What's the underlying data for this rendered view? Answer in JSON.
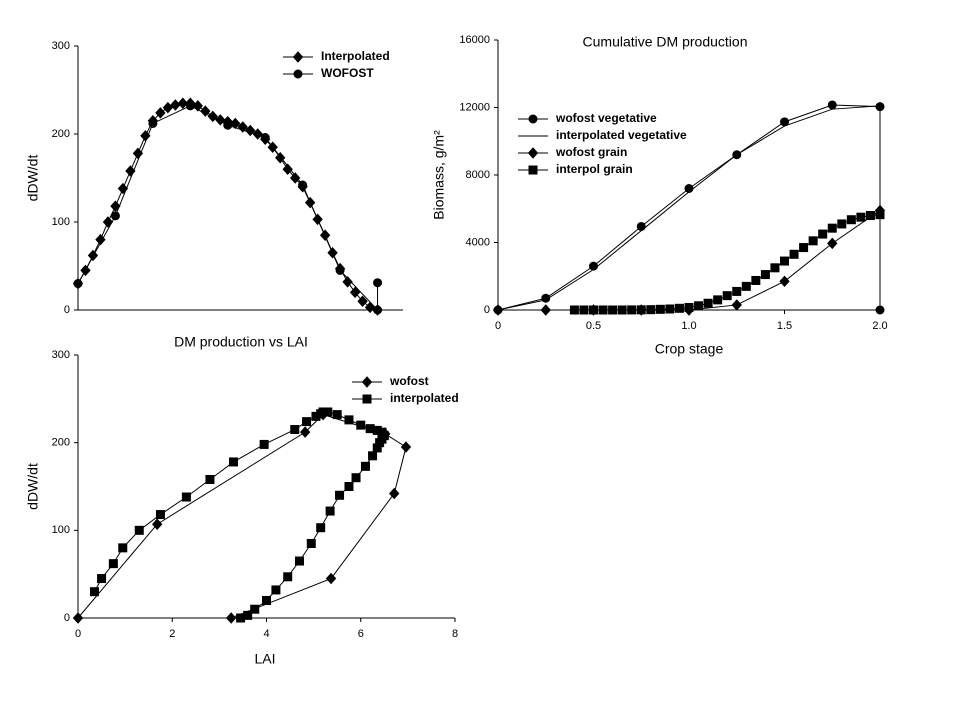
{
  "chart_data": [
    {
      "type": "line",
      "ylabel": "dDW/dt",
      "xlim": [
        0,
        2.17
      ],
      "ylim": [
        0,
        300
      ],
      "yticks": [
        0,
        100,
        200,
        300
      ],
      "legend": "top-right",
      "series": [
        {
          "name": "Interpolated",
          "color": "#000000",
          "marker": "diamond",
          "x": [
            0,
            0.05,
            0.1,
            0.15,
            0.2,
            0.25,
            0.3,
            0.35,
            0.4,
            0.45,
            0.5,
            0.55,
            0.6,
            0.65,
            0.7,
            0.75,
            0.8,
            0.85,
            0.9,
            0.95,
            1.0,
            1.05,
            1.1,
            1.15,
            1.2,
            1.25,
            1.3,
            1.35,
            1.4,
            1.45,
            1.5,
            1.55,
            1.6,
            1.65,
            1.7,
            1.75,
            1.8,
            1.85,
            1.9,
            1.95,
            2.0
          ],
          "values": [
            30,
            45,
            62,
            80,
            100,
            118,
            138,
            158,
            178,
            198,
            215,
            224,
            230,
            233,
            235,
            235,
            232,
            226,
            220,
            216,
            214,
            212,
            208,
            204,
            200,
            194,
            185,
            173,
            160,
            150,
            140,
            122,
            103,
            85,
            65,
            47,
            32,
            20,
            10,
            3,
            0
          ]
        },
        {
          "name": "WOFOST",
          "color": "#000000",
          "marker": "circle",
          "x": [
            0,
            0.25,
            0.5,
            0.75,
            1.0,
            1.25,
            1.5,
            1.75,
            2.0,
            2.0
          ],
          "values": [
            30,
            107,
            212,
            232,
            210,
            196,
            142,
            45,
            0,
            31
          ]
        }
      ]
    },
    {
      "type": "line",
      "title": "Cumulative DM production",
      "xlabel": "Crop stage",
      "ylabel": "Biomass, g/m²",
      "xlim": [
        0,
        2
      ],
      "ylim": [
        0,
        16000
      ],
      "xticks": [
        0,
        0.5,
        {
          "value": 1,
          "label": "1.0"
        },
        1.5,
        {
          "value": 2,
          "label": "2.0"
        }
      ],
      "yticks": [
        0,
        4000,
        8000,
        12000,
        16000
      ],
      "legend": "top-left",
      "series": [
        {
          "name": "wofost vegetative",
          "color": "#000000",
          "marker": "circle",
          "x": [
            0,
            0.25,
            0.5,
            0.75,
            1.0,
            1.25,
            1.5,
            1.75,
            2.0,
            2.0
          ],
          "values": [
            0,
            700,
            2600,
            4950,
            7200,
            9200,
            11150,
            12150,
            12050,
            0
          ]
        },
        {
          "name": "interpolated vegetative",
          "color": "#000000",
          "marker": "none",
          "x": [
            0,
            0.25,
            0.5,
            0.75,
            1.0,
            1.25,
            1.5,
            1.75,
            2.0
          ],
          "values": [
            0,
            600,
            2400,
            4700,
            7000,
            9200,
            10900,
            11900,
            12100
          ]
        },
        {
          "name": "wofost grain",
          "color": "#000000",
          "marker": "diamond",
          "x": [
            0,
            0.25,
            0.5,
            0.75,
            1.0,
            1.25,
            1.5,
            1.75,
            2.0
          ],
          "values": [
            0,
            0,
            0,
            0,
            0,
            300,
            1700,
            3950,
            5900
          ]
        },
        {
          "name": "interpol grain",
          "color": "#000000",
          "marker": "square",
          "x": [
            0.4,
            0.45,
            0.5,
            0.55,
            0.6,
            0.65,
            0.7,
            0.75,
            0.8,
            0.85,
            0.9,
            0.95,
            1.0,
            1.05,
            1.1,
            1.15,
            1.2,
            1.25,
            1.3,
            1.35,
            1.4,
            1.45,
            1.5,
            1.55,
            1.6,
            1.65,
            1.7,
            1.75,
            1.8,
            1.85,
            1.9,
            1.95,
            2.0
          ],
          "values": [
            0,
            0,
            0,
            0,
            0,
            0,
            5,
            10,
            20,
            40,
            60,
            100,
            150,
            250,
            400,
            600,
            850,
            1100,
            1400,
            1750,
            2100,
            2500,
            2900,
            3300,
            3700,
            4100,
            4500,
            4850,
            5100,
            5350,
            5500,
            5600,
            5650
          ]
        }
      ]
    },
    {
      "type": "line",
      "title": "DM production vs LAI",
      "xlabel": "LAI",
      "ylabel": "dDW/dt",
      "xlim": [
        0,
        8
      ],
      "ylim": [
        0,
        300
      ],
      "xticks": [
        0,
        2,
        4,
        6,
        8
      ],
      "yticks": [
        0,
        100,
        200,
        300
      ],
      "legend": "top-right",
      "series": [
        {
          "name": "wofost",
          "color": "#000000",
          "marker": "diamond",
          "x": [
            0,
            1.68,
            4.82,
            5.2,
            6.52,
            6.96,
            6.71,
            5.37,
            3.25
          ],
          "values": [
            0,
            107,
            212,
            232,
            210,
            195,
            142,
            45,
            0
          ]
        },
        {
          "name": "interpolated",
          "color": "#000000",
          "marker": "square",
          "x": [
            0.35,
            0.5,
            0.75,
            0.95,
            1.3,
            1.75,
            2.3,
            2.8,
            3.3,
            3.95,
            4.6,
            4.85,
            5.05,
            5.15,
            5.2,
            5.3,
            5.5,
            5.75,
            6.0,
            6.2,
            6.35,
            6.45,
            6.5,
            6.45,
            6.4,
            6.35,
            6.25,
            6.1,
            5.9,
            5.75,
            5.55,
            5.35,
            5.15,
            4.95,
            4.7,
            4.45,
            4.2,
            4.0,
            3.75,
            3.6,
            3.45
          ],
          "values": [
            30,
            45,
            62,
            80,
            100,
            118,
            138,
            158,
            178,
            198,
            215,
            224,
            230,
            233,
            235,
            235,
            232,
            226,
            220,
            216,
            214,
            212,
            208,
            204,
            200,
            194,
            185,
            173,
            160,
            150,
            140,
            122,
            103,
            85,
            65,
            47,
            32,
            20,
            10,
            3,
            0
          ]
        }
      ]
    }
  ]
}
